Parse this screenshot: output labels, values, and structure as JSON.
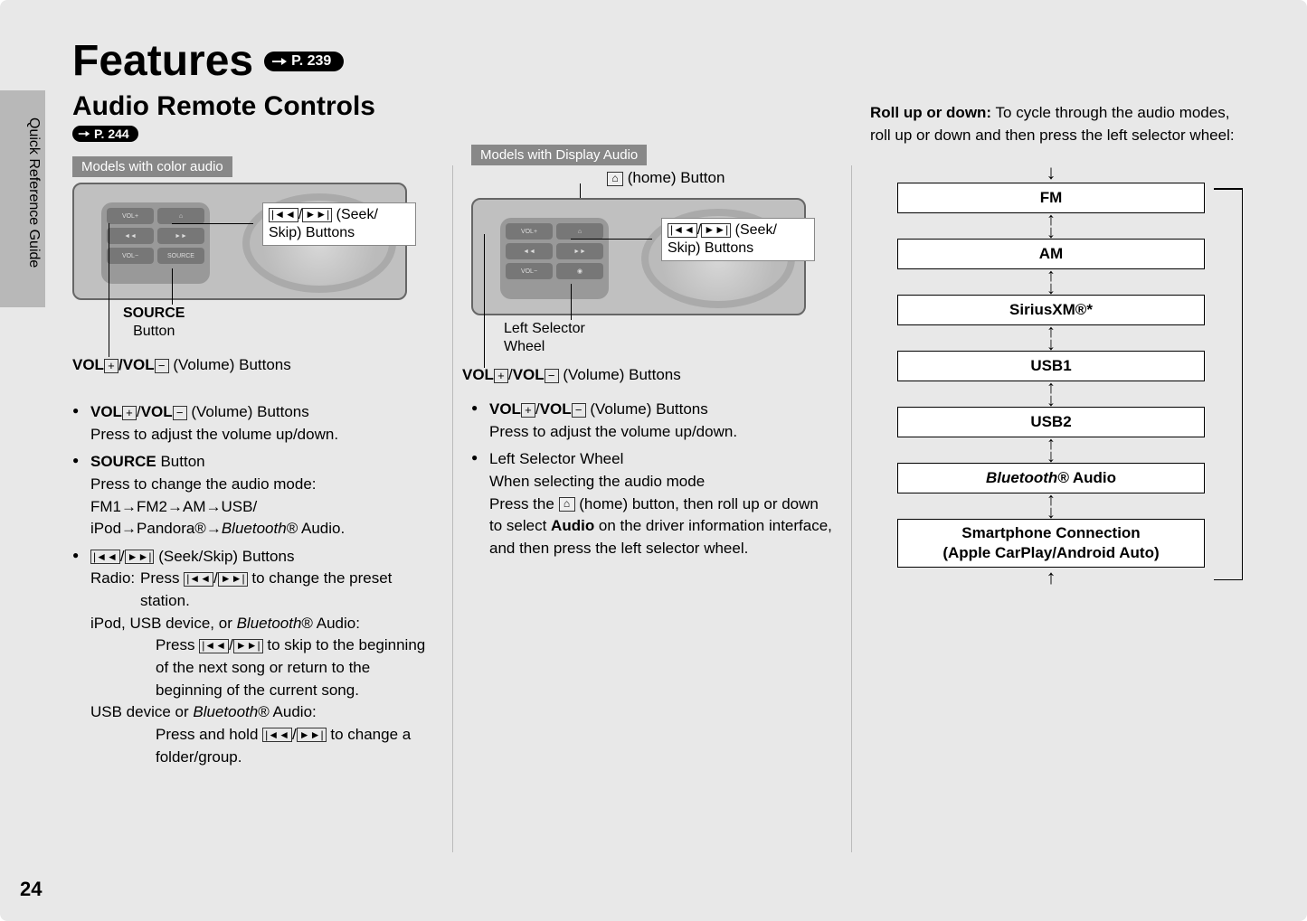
{
  "page": {
    "number": "24",
    "side_tab": "Quick Reference Guide",
    "title": "Features",
    "title_page_ref": "P. 239",
    "subtitle": "Audio Remote Controls",
    "subtitle_page_ref": "P. 244"
  },
  "col1": {
    "section_tag": "Models with color audio",
    "diagram": {
      "seek_label": "(Seek/\nSkip) Buttons",
      "source_label_1": "SOURCE",
      "source_label_2": "Button",
      "vol_caption_prefix": "VOL",
      "vol_caption_mid": "/",
      "vol_caption_suffix": " (Volume) Buttons"
    },
    "bullets": {
      "vol_head": " (Volume) Buttons",
      "vol_body": "Press to adjust the volume up/down.",
      "source_head": "SOURCE",
      "source_head2": " Button",
      "source_body1": "Press to change the audio mode:",
      "source_body2_a": "FM1",
      "source_body2_b": "FM2",
      "source_body2_c": "AM",
      "source_body2_d": "USB/",
      "source_body3_a": "iPod",
      "source_body3_b": "Pandora®",
      "source_body3_c": "Bluetooth",
      "source_body3_d": "® Audio.",
      "seek_head": " (Seek/Skip) Buttons",
      "seek_radio_label": "Radio:",
      "seek_radio_a": "Press ",
      "seek_radio_b": " to change the preset station.",
      "seek_ipod_label": "iPod, USB device, or ",
      "seek_ipod_bt": "Bluetooth",
      "seek_ipod_suffix": "® Audio:",
      "seek_ipod_a": "Press ",
      "seek_ipod_b": " to skip to the beginning of the next song or return to the beginning of the current song.",
      "seek_usb_label": "USB device or ",
      "seek_usb_bt": "Bluetooth",
      "seek_usb_suffix": "® Audio:",
      "seek_usb_a": "Press and hold ",
      "seek_usb_b": " to change a folder/group."
    }
  },
  "col2": {
    "section_tag": "Models with Display Audio",
    "diagram": {
      "home_label": " (home) Button",
      "seek_label": "(Seek/\nSkip) Buttons",
      "selector_label": "Left Selector\nWheel",
      "vol_caption_suffix": " (Volume) Buttons"
    },
    "bullets": {
      "vol_head": " (Volume) Buttons",
      "vol_body": "Press to adjust the volume up/down.",
      "selector_head": "Left Selector Wheel",
      "selector_body1": "When selecting the audio mode",
      "selector_body2a": "Press the ",
      "selector_body2b": " (home) button, then roll up or down to select ",
      "selector_body2_audio": "Audio",
      "selector_body2c": " on the driver information interface, and then press the left selector wheel."
    }
  },
  "col3": {
    "intro_bold": "Roll up or down:",
    "intro_rest": " To cycle through the audio modes, roll up or down and then press the left selector wheel:",
    "flow": [
      "FM",
      "AM",
      "SiriusXM®*",
      "USB1",
      "USB2",
      "Bluetooth® Audio",
      "Smartphone Connection\n(Apple CarPlay/Android Auto)"
    ],
    "flow_italic_indices": [
      5
    ]
  },
  "style": {
    "colors": {
      "page_bg": "#e8e8e8",
      "side_tab": "#b8b8b8",
      "section_tag_bg": "#888888",
      "section_tag_fg": "#ffffff",
      "pill_bg": "#000000",
      "pill_fg": "#ffffff",
      "border": "#000000",
      "photo_bg": "#c0c0c0"
    },
    "fonts": {
      "title_size_pt": 36,
      "subtitle_size_pt": 22,
      "body_size_pt": 13
    }
  }
}
